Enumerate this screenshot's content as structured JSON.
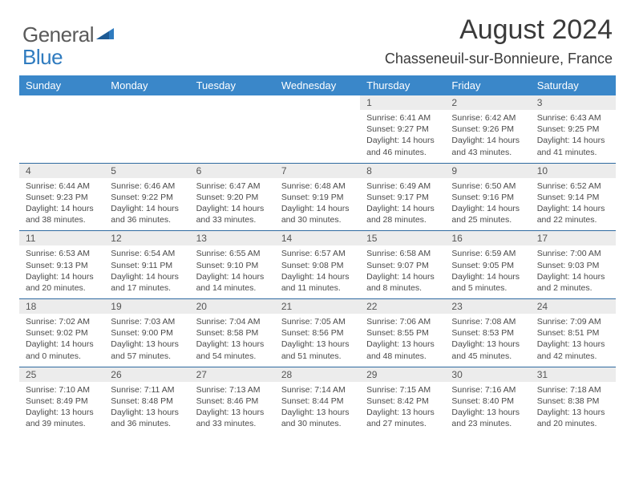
{
  "logo": {
    "general": "General",
    "blue": "Blue"
  },
  "title": "August 2024",
  "location": "Chasseneuil-sur-Bonnieure, France",
  "colors": {
    "header_bg": "#3a87c9",
    "header_text": "#ffffff",
    "daynum_bg": "#ececec",
    "rule": "#2f6aa0",
    "logo_blue": "#2f7bbf",
    "text": "#3a3a3a"
  },
  "dayNames": [
    "Sunday",
    "Monday",
    "Tuesday",
    "Wednesday",
    "Thursday",
    "Friday",
    "Saturday"
  ],
  "weeks": [
    [
      {
        "n": "",
        "sr": "",
        "ss": "",
        "dl": ""
      },
      {
        "n": "",
        "sr": "",
        "ss": "",
        "dl": ""
      },
      {
        "n": "",
        "sr": "",
        "ss": "",
        "dl": ""
      },
      {
        "n": "",
        "sr": "",
        "ss": "",
        "dl": ""
      },
      {
        "n": "1",
        "sr": "Sunrise: 6:41 AM",
        "ss": "Sunset: 9:27 PM",
        "dl": "Daylight: 14 hours and 46 minutes."
      },
      {
        "n": "2",
        "sr": "Sunrise: 6:42 AM",
        "ss": "Sunset: 9:26 PM",
        "dl": "Daylight: 14 hours and 43 minutes."
      },
      {
        "n": "3",
        "sr": "Sunrise: 6:43 AM",
        "ss": "Sunset: 9:25 PM",
        "dl": "Daylight: 14 hours and 41 minutes."
      }
    ],
    [
      {
        "n": "4",
        "sr": "Sunrise: 6:44 AM",
        "ss": "Sunset: 9:23 PM",
        "dl": "Daylight: 14 hours and 38 minutes."
      },
      {
        "n": "5",
        "sr": "Sunrise: 6:46 AM",
        "ss": "Sunset: 9:22 PM",
        "dl": "Daylight: 14 hours and 36 minutes."
      },
      {
        "n": "6",
        "sr": "Sunrise: 6:47 AM",
        "ss": "Sunset: 9:20 PM",
        "dl": "Daylight: 14 hours and 33 minutes."
      },
      {
        "n": "7",
        "sr": "Sunrise: 6:48 AM",
        "ss": "Sunset: 9:19 PM",
        "dl": "Daylight: 14 hours and 30 minutes."
      },
      {
        "n": "8",
        "sr": "Sunrise: 6:49 AM",
        "ss": "Sunset: 9:17 PM",
        "dl": "Daylight: 14 hours and 28 minutes."
      },
      {
        "n": "9",
        "sr": "Sunrise: 6:50 AM",
        "ss": "Sunset: 9:16 PM",
        "dl": "Daylight: 14 hours and 25 minutes."
      },
      {
        "n": "10",
        "sr": "Sunrise: 6:52 AM",
        "ss": "Sunset: 9:14 PM",
        "dl": "Daylight: 14 hours and 22 minutes."
      }
    ],
    [
      {
        "n": "11",
        "sr": "Sunrise: 6:53 AM",
        "ss": "Sunset: 9:13 PM",
        "dl": "Daylight: 14 hours and 20 minutes."
      },
      {
        "n": "12",
        "sr": "Sunrise: 6:54 AM",
        "ss": "Sunset: 9:11 PM",
        "dl": "Daylight: 14 hours and 17 minutes."
      },
      {
        "n": "13",
        "sr": "Sunrise: 6:55 AM",
        "ss": "Sunset: 9:10 PM",
        "dl": "Daylight: 14 hours and 14 minutes."
      },
      {
        "n": "14",
        "sr": "Sunrise: 6:57 AM",
        "ss": "Sunset: 9:08 PM",
        "dl": "Daylight: 14 hours and 11 minutes."
      },
      {
        "n": "15",
        "sr": "Sunrise: 6:58 AM",
        "ss": "Sunset: 9:07 PM",
        "dl": "Daylight: 14 hours and 8 minutes."
      },
      {
        "n": "16",
        "sr": "Sunrise: 6:59 AM",
        "ss": "Sunset: 9:05 PM",
        "dl": "Daylight: 14 hours and 5 minutes."
      },
      {
        "n": "17",
        "sr": "Sunrise: 7:00 AM",
        "ss": "Sunset: 9:03 PM",
        "dl": "Daylight: 14 hours and 2 minutes."
      }
    ],
    [
      {
        "n": "18",
        "sr": "Sunrise: 7:02 AM",
        "ss": "Sunset: 9:02 PM",
        "dl": "Daylight: 14 hours and 0 minutes."
      },
      {
        "n": "19",
        "sr": "Sunrise: 7:03 AM",
        "ss": "Sunset: 9:00 PM",
        "dl": "Daylight: 13 hours and 57 minutes."
      },
      {
        "n": "20",
        "sr": "Sunrise: 7:04 AM",
        "ss": "Sunset: 8:58 PM",
        "dl": "Daylight: 13 hours and 54 minutes."
      },
      {
        "n": "21",
        "sr": "Sunrise: 7:05 AM",
        "ss": "Sunset: 8:56 PM",
        "dl": "Daylight: 13 hours and 51 minutes."
      },
      {
        "n": "22",
        "sr": "Sunrise: 7:06 AM",
        "ss": "Sunset: 8:55 PM",
        "dl": "Daylight: 13 hours and 48 minutes."
      },
      {
        "n": "23",
        "sr": "Sunrise: 7:08 AM",
        "ss": "Sunset: 8:53 PM",
        "dl": "Daylight: 13 hours and 45 minutes."
      },
      {
        "n": "24",
        "sr": "Sunrise: 7:09 AM",
        "ss": "Sunset: 8:51 PM",
        "dl": "Daylight: 13 hours and 42 minutes."
      }
    ],
    [
      {
        "n": "25",
        "sr": "Sunrise: 7:10 AM",
        "ss": "Sunset: 8:49 PM",
        "dl": "Daylight: 13 hours and 39 minutes."
      },
      {
        "n": "26",
        "sr": "Sunrise: 7:11 AM",
        "ss": "Sunset: 8:48 PM",
        "dl": "Daylight: 13 hours and 36 minutes."
      },
      {
        "n": "27",
        "sr": "Sunrise: 7:13 AM",
        "ss": "Sunset: 8:46 PM",
        "dl": "Daylight: 13 hours and 33 minutes."
      },
      {
        "n": "28",
        "sr": "Sunrise: 7:14 AM",
        "ss": "Sunset: 8:44 PM",
        "dl": "Daylight: 13 hours and 30 minutes."
      },
      {
        "n": "29",
        "sr": "Sunrise: 7:15 AM",
        "ss": "Sunset: 8:42 PM",
        "dl": "Daylight: 13 hours and 27 minutes."
      },
      {
        "n": "30",
        "sr": "Sunrise: 7:16 AM",
        "ss": "Sunset: 8:40 PM",
        "dl": "Daylight: 13 hours and 23 minutes."
      },
      {
        "n": "31",
        "sr": "Sunrise: 7:18 AM",
        "ss": "Sunset: 8:38 PM",
        "dl": "Daylight: 13 hours and 20 minutes."
      }
    ]
  ]
}
